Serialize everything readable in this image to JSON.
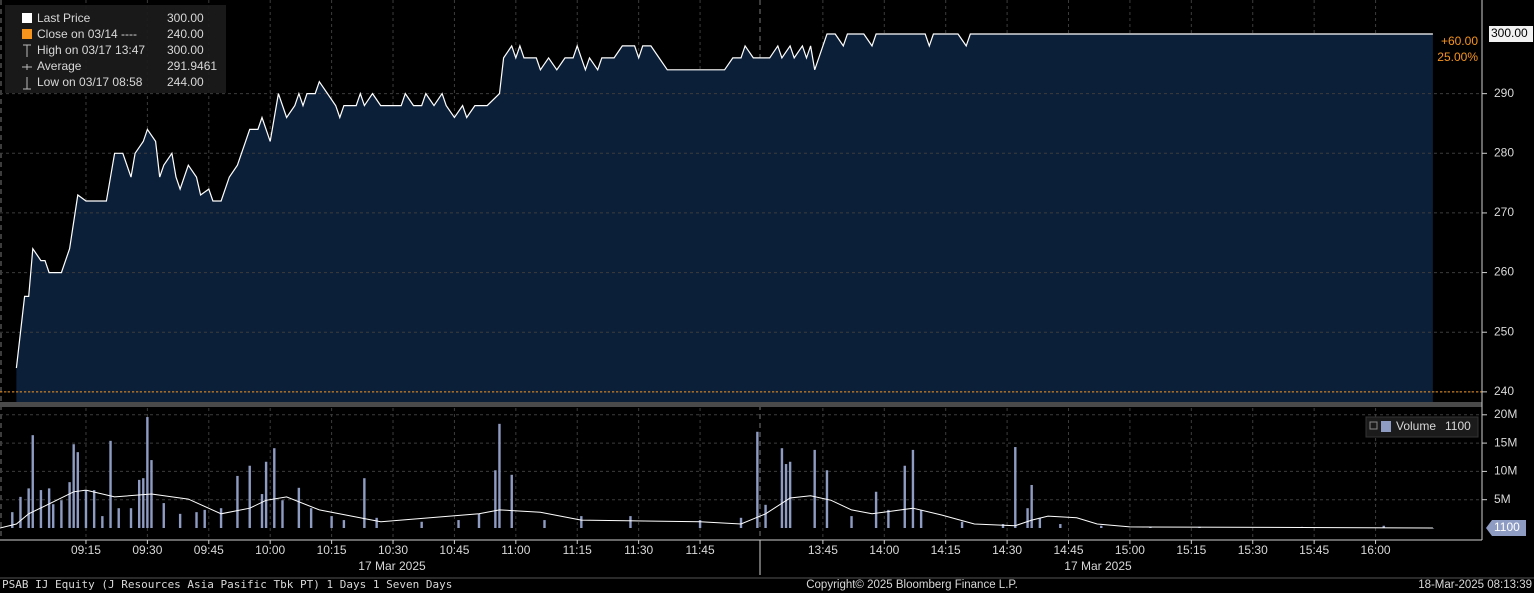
{
  "chart_data": [
    {
      "type": "area",
      "stats": [
        {
          "name": "Last Price",
          "value": 300,
          "value_label": "300.00"
        },
        {
          "name": "Close on 03/14 ----",
          "value": 240,
          "value_label": "240.00"
        },
        {
          "name": "High on 03/17 13:47",
          "value": 300,
          "value_label": "300.00"
        },
        {
          "name": "Average",
          "value": 291.9461
        },
        {
          "name": "Low on 03/17 08:58",
          "value": 244,
          "value_label": "244.00"
        }
      ],
      "change": {
        "value": 60,
        "label": "+60.00"
      },
      "change_pct": {
        "value": 25,
        "label": "25.00%"
      },
      "color": "#ffffff",
      "fill": "#0b1f38",
      "close_color": "#f7941d",
      "xlim": [
        "08:54",
        "16:26"
      ],
      "ylim": [
        238.3,
        305.7
      ],
      "yticks": [
        240,
        250,
        260,
        270,
        280,
        290
      ],
      "grid": true,
      "x": [
        "08:58",
        "09:00",
        "09:01",
        "09:02",
        "09:04",
        "09:05",
        "09:06",
        "09:09",
        "09:11",
        "09:13",
        "09:15",
        "09:17",
        "09:20",
        "09:22",
        "09:24",
        "09:26",
        "09:27",
        "09:29",
        "09:30",
        "09:32",
        "09:33",
        "09:34",
        "09:36",
        "09:37",
        "09:38",
        "09:40",
        "09:42",
        "09:43",
        "09:45",
        "09:46",
        "09:48",
        "09:50",
        "09:52",
        "09:54",
        "09:55",
        "09:57",
        "09:58",
        "10:00",
        "10:02",
        "10:04",
        "10:06",
        "10:07",
        "10:08",
        "10:09",
        "10:11",
        "10:12",
        "10:14",
        "10:16",
        "10:17",
        "10:18",
        "10:21",
        "10:22",
        "10:23",
        "10:25",
        "10:27",
        "10:29",
        "10:32",
        "10:33",
        "10:35",
        "10:37",
        "10:38",
        "10:40",
        "10:42",
        "10:43",
        "10:45",
        "10:47",
        "10:48",
        "10:50",
        "10:53",
        "10:56",
        "10:57",
        "10:59",
        "11:00",
        "11:01",
        "11:02",
        "11:05",
        "11:06",
        "11:08",
        "11:10",
        "11:12",
        "11:14",
        "11:15",
        "11:16",
        "11:17",
        "11:18",
        "11:20",
        "11:21",
        "11:24",
        "11:26",
        "11:29",
        "11:30",
        "11:31",
        "11:33",
        "11:35",
        "11:37",
        "11:40",
        "11:46",
        "11:49",
        "11:51",
        "11:53",
        "11:55",
        "11:56",
        "11:58",
        "13:30",
        "13:32",
        "13:34",
        "13:35",
        "13:37",
        "13:38",
        "13:40",
        "13:41",
        "13:42",
        "13:43",
        "13:45",
        "13:46",
        "13:48",
        "13:50",
        "13:51",
        "13:53",
        "13:55",
        "13:57",
        "13:58",
        "14:00",
        "14:10",
        "14:11",
        "14:12",
        "14:18",
        "14:20",
        "14:21",
        "16:14"
      ],
      "values": [
        244,
        256,
        256,
        264,
        262,
        262,
        260,
        260,
        264,
        273,
        272,
        272,
        272,
        280,
        280,
        276,
        280,
        282,
        284,
        282,
        276,
        278,
        280,
        276,
        274,
        278,
        276,
        273,
        274,
        272,
        272,
        276,
        278,
        282,
        284,
        284,
        286,
        282,
        290,
        286,
        288,
        290,
        288,
        290,
        290,
        292,
        290,
        288,
        286,
        288,
        288,
        290,
        288,
        290,
        288,
        288,
        288,
        290,
        288,
        288,
        290,
        288,
        290,
        288,
        286,
        288,
        286,
        288,
        288,
        290,
        296,
        298,
        296,
        298,
        296,
        296,
        294,
        296,
        294,
        296,
        296,
        298,
        296,
        294,
        296,
        294,
        296,
        296,
        298,
        298,
        296,
        298,
        298,
        296,
        294,
        294,
        294,
        294,
        294,
        296,
        296,
        298,
        296,
        296,
        296,
        298,
        296,
        298,
        296,
        298,
        296,
        298,
        294,
        298,
        300,
        300,
        298,
        300,
        300,
        300,
        298,
        300,
        300,
        300,
        298,
        300,
        300,
        298,
        300,
        300
      ]
    },
    {
      "type": "bar",
      "last_value": 1100,
      "xlim": [
        "08:54",
        "16:26"
      ],
      "ylim": [
        -2120000,
        21200000
      ],
      "yticks": [
        {
          "value": 5000000,
          "label": "5M"
        },
        {
          "value": 10000000,
          "label": "10M"
        },
        {
          "value": 15000000,
          "label": "15M"
        },
        {
          "value": 20000000,
          "label": "20M"
        }
      ],
      "xticks": [
        "09:15",
        "09:30",
        "09:45",
        "10:00",
        "10:15",
        "10:30",
        "10:45",
        "11:00",
        "11:15",
        "11:30",
        "11:45",
        "13:45",
        "14:00",
        "14:15",
        "14:30",
        "14:45",
        "15:00",
        "15:15",
        "15:30",
        "15:45",
        "16:00"
      ],
      "date_labels": [
        "17 Mar 2025",
        "17 Mar 2025"
      ],
      "grid": true,
      "x": [
        "08:57",
        "08:59",
        "09:01",
        "09:02",
        "09:04",
        "09:06",
        "09:07",
        "09:09",
        "09:11",
        "09:12",
        "09:13",
        "09:15",
        "09:17",
        "09:19",
        "09:21",
        "09:23",
        "09:26",
        "09:28",
        "09:29",
        "09:30",
        "09:31",
        "09:34",
        "09:38",
        "09:42",
        "09:44",
        "09:48",
        "09:52",
        "09:55",
        "09:58",
        "09:59",
        "10:01",
        "10:03",
        "10:07",
        "10:10",
        "10:15",
        "10:18",
        "10:23",
        "10:26",
        "10:37",
        "10:46",
        "10:51",
        "10:55",
        "10:56",
        "10:59",
        "11:07",
        "11:16",
        "11:28",
        "11:45",
        "11:55",
        "11:59",
        "13:31",
        "13:35",
        "13:36",
        "13:37",
        "13:43",
        "13:46",
        "13:52",
        "13:58",
        "14:01",
        "14:05",
        "14:07",
        "14:09",
        "14:19",
        "14:29",
        "14:32",
        "14:35",
        "14:36",
        "14:38",
        "14:43",
        "14:53",
        "15:05",
        "15:17",
        "15:42",
        "16:02",
        "16:14"
      ],
      "series": [
        {
          "name": "Volume",
          "color": "#8e9cc3",
          "values": [
            2800000,
            5500000,
            7000000,
            16400000,
            6700000,
            7000000,
            4200000,
            4900000,
            8100000,
            14800000,
            13400000,
            6700000,
            6700000,
            2100000,
            15400000,
            3500000,
            3500000,
            8500000,
            8800000,
            19600000,
            12000000,
            4400000,
            2500000,
            2800000,
            3200000,
            3500000,
            9200000,
            11000000,
            6000000,
            11700000,
            14100000,
            4900000,
            7100000,
            3500000,
            2100000,
            1400000,
            8800000,
            1800000,
            1100000,
            1400000,
            2500000,
            10200000,
            18400000,
            9400000,
            1400000,
            2100000,
            2100000,
            1400000,
            1800000,
            17000000,
            4100000,
            14100000,
            11300000,
            11700000,
            13800000,
            10200000,
            2100000,
            6400000,
            3200000,
            11000000,
            13800000,
            3200000,
            1100000,
            700000,
            14300000,
            3500000,
            7600000,
            1800000,
            700000,
            400000,
            200000,
            200000,
            200000,
            400000,
            1100
          ]
        }
      ],
      "overlay": {
        "type": "line",
        "color": "#ffffff",
        "x": [
          "08:54",
          "08:58",
          "09:01",
          "09:05",
          "09:12",
          "09:15",
          "09:22",
          "09:31",
          "09:40",
          "09:48",
          "09:55",
          "09:59",
          "10:04",
          "10:12",
          "10:27",
          "10:51",
          "10:56",
          "11:06",
          "11:16",
          "11:45",
          "11:55",
          "13:31",
          "13:37",
          "13:42",
          "13:47",
          "13:52",
          "13:57",
          "14:07",
          "14:14",
          "14:22",
          "14:32",
          "14:36",
          "14:40",
          "14:47",
          "14:52",
          "15:00",
          "16:14"
        ],
        "values": [
          0,
          700000,
          2500000,
          3900000,
          6400000,
          6700000,
          5500000,
          6000000,
          5100000,
          2500000,
          3500000,
          4900000,
          5500000,
          3200000,
          1100000,
          2500000,
          3200000,
          2800000,
          1400000,
          1100000,
          700000,
          2500000,
          5300000,
          5700000,
          4900000,
          3200000,
          2500000,
          3500000,
          2300000,
          700000,
          400000,
          1400000,
          2100000,
          1800000,
          700000,
          200000,
          0
        ]
      }
    }
  ],
  "footer": {
    "left": "PSAB IJ Equity (J Resources Asia Pasific Tbk PT) 1 Days 1 Seven Days",
    "center": "Copyright© 2025 Bloomberg Finance L.P.",
    "right": "18-Mar-2025 08:13:39"
  }
}
